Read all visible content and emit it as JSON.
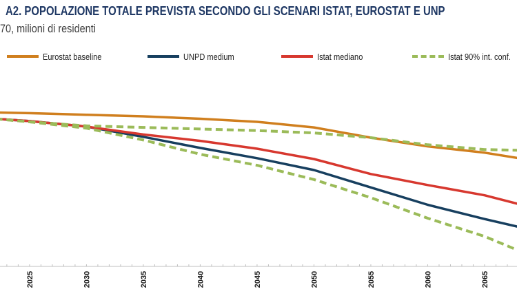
{
  "title": "A2. POPOLAZIONE TOTALE PREVISTA SECONDO GLI SCENARI ISTAT, EUROSTAT E UNP",
  "subtitle": "70, milioni di residenti",
  "chart_data": {
    "type": "line",
    "title": "A2. POPOLAZIONE TOTALE PREVISTA SECONDO GLI SCENARI ISTAT, EUROSTAT E UNP",
    "subtitle": "70, milioni di residenti",
    "xlabel": "",
    "ylabel": "",
    "xlim": [
      2022.4,
      2067.85
    ],
    "ylim": [
      40.3,
      62.7
    ],
    "grid": false,
    "legend_position": "top",
    "x_ticks": [
      "2025",
      "2030",
      "2035",
      "2040",
      "2045",
      "2050",
      "2055",
      "2060",
      "2065"
    ],
    "x": [
      2022,
      2025,
      2030,
      2035,
      2040,
      2045,
      2050,
      2055,
      2060,
      2065,
      2068
    ],
    "series": [
      {
        "name": "Eurostat baseline",
        "color": "#d07f1e",
        "style": "solid",
        "values": [
          59.8,
          59.7,
          59.5,
          59.3,
          59.0,
          58.6,
          57.9,
          56.6,
          55.5,
          54.7,
          54.0
        ]
      },
      {
        "name": "UNPD medium",
        "color": "#173f5f",
        "style": "solid",
        "values": [
          59.0,
          58.7,
          58.0,
          56.7,
          55.3,
          54.0,
          52.5,
          50.3,
          48.1,
          46.3,
          45.3
        ]
      },
      {
        "name": "Istat mediano",
        "color": "#d7382f",
        "style": "solid",
        "values": [
          59.0,
          58.7,
          58.0,
          57.0,
          56.2,
          55.2,
          53.9,
          52.0,
          50.6,
          49.3,
          48.2
        ]
      },
      {
        "name": "Istat 90% int. conf.",
        "color": "#9bbb59",
        "style": "dashed",
        "values": [
          59.0,
          58.6,
          58.1,
          57.9,
          57.7,
          57.5,
          57.2,
          56.6,
          55.7,
          55.1,
          55.0
        ]
      },
      {
        "name": "Istat 90% int. conf.",
        "color": "#9bbb59",
        "style": "dashed",
        "values": [
          59.0,
          58.6,
          57.8,
          56.3,
          54.5,
          53.1,
          51.3,
          49.0,
          46.4,
          44.1,
          42.3
        ]
      }
    ]
  },
  "legend": [
    {
      "label": "Eurostat baseline",
      "color": "#d07f1e",
      "style": "solid"
    },
    {
      "label": "UNPD medium",
      "color": "#173f5f",
      "style": "solid"
    },
    {
      "label": "Istat mediano",
      "color": "#d7382f",
      "style": "solid"
    },
    {
      "label": "Istat 90% int. conf.",
      "color": "#9bbb59",
      "style": "dashed"
    }
  ]
}
